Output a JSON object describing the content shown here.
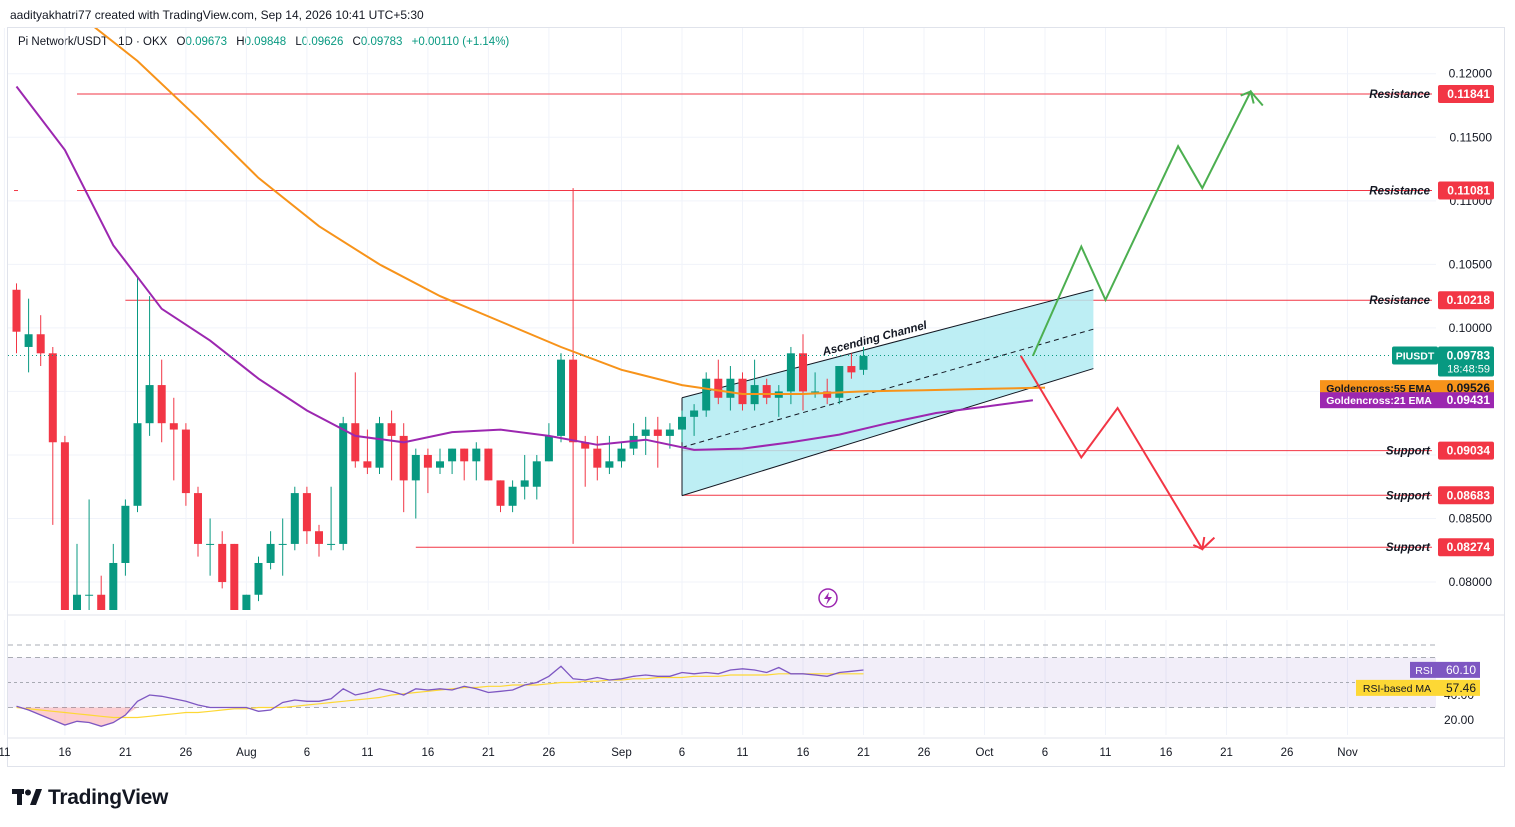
{
  "header": {
    "credit": "aadityakhatri77 created with TradingView.com, Sep 14, 2026 10:41 UTC+5:30",
    "symbol": "Pi Network/USDT · 1D · OKX",
    "o_label": "O",
    "o": "0.09673",
    "h_label": "H",
    "h": "0.09848",
    "l_label": "L",
    "l": "0.09626",
    "c_label": "C",
    "c": "0.09783",
    "change": "+0.00110 (+1.14%)"
  },
  "brand": "TradingView",
  "colors": {
    "up": "#089981",
    "down": "#f23645",
    "ema55": "#f7931a",
    "ema21": "#9c27b0",
    "channel_fill": "#b2ebf2",
    "projection_up": "#4caf50",
    "projection_down": "#f23645",
    "rsi": "#7e57c2",
    "rsi_ma": "#fdd835"
  },
  "chart_data": {
    "type": "candlestick",
    "x_ticks": [
      "11",
      "16",
      "21",
      "26",
      "Aug",
      "6",
      "11",
      "16",
      "21",
      "26",
      "Sep",
      "6",
      "11",
      "16",
      "21",
      "26",
      "Oct",
      "6",
      "11",
      "16",
      "21",
      "26",
      "Nov"
    ],
    "x_tick_days": [
      -1,
      4,
      9,
      14,
      19,
      24,
      29,
      34,
      39,
      44,
      50,
      55,
      60,
      65,
      70,
      75,
      80,
      85,
      90,
      95,
      100,
      105,
      110
    ],
    "y_ticks": [
      "0.12000",
      "0.11500",
      "0.11000",
      "0.10500",
      "0.10000",
      "0.08500",
      "0.08000"
    ],
    "y_tick_values": [
      0.12,
      0.115,
      0.11,
      0.105,
      0.1,
      0.085,
      0.08
    ],
    "ylim": [
      0.0778,
      0.1236
    ],
    "candles": [
      {
        "o": 0.103,
        "h": 0.1035,
        "c": 0.0997,
        "l": 0.098
      },
      {
        "o": 0.0985,
        "h": 0.1023,
        "c": 0.0995,
        "l": 0.0965
      },
      {
        "o": 0.0995,
        "h": 0.101,
        "c": 0.098,
        "l": 0.097
      },
      {
        "o": 0.098,
        "h": 0.0985,
        "c": 0.091,
        "l": 0.0845
      },
      {
        "o": 0.091,
        "h": 0.0915,
        "c": 0.0775,
        "l": 0.077
      },
      {
        "o": 0.0775,
        "h": 0.083,
        "c": 0.079,
        "l": 0.077
      },
      {
        "o": 0.079,
        "h": 0.0865,
        "c": 0.079,
        "l": 0.0775
      },
      {
        "o": 0.079,
        "h": 0.0805,
        "c": 0.0775,
        "l": 0.077
      },
      {
        "o": 0.0775,
        "h": 0.083,
        "c": 0.0815,
        "l": 0.077
      },
      {
        "o": 0.0815,
        "h": 0.0865,
        "c": 0.086,
        "l": 0.0805
      },
      {
        "o": 0.086,
        "h": 0.104,
        "c": 0.0925,
        "l": 0.0855
      },
      {
        "o": 0.0925,
        "h": 0.1025,
        "c": 0.0955,
        "l": 0.0915
      },
      {
        "o": 0.0955,
        "h": 0.0975,
        "c": 0.0925,
        "l": 0.091
      },
      {
        "o": 0.0925,
        "h": 0.0945,
        "c": 0.092,
        "l": 0.088
      },
      {
        "o": 0.092,
        "h": 0.0925,
        "c": 0.087,
        "l": 0.086
      },
      {
        "o": 0.087,
        "h": 0.0875,
        "c": 0.083,
        "l": 0.082
      },
      {
        "o": 0.083,
        "h": 0.085,
        "c": 0.083,
        "l": 0.0805
      },
      {
        "o": 0.083,
        "h": 0.084,
        "c": 0.08,
        "l": 0.0795
      },
      {
        "o": 0.083,
        "h": 0.083,
        "c": 0.0775,
        "l": 0.077
      },
      {
        "o": 0.0775,
        "h": 0.079,
        "c": 0.079,
        "l": 0.077
      },
      {
        "o": 0.079,
        "h": 0.082,
        "c": 0.0815,
        "l": 0.0785
      },
      {
        "o": 0.0815,
        "h": 0.084,
        "c": 0.083,
        "l": 0.081
      },
      {
        "o": 0.083,
        "h": 0.085,
        "c": 0.083,
        "l": 0.0805
      },
      {
        "o": 0.083,
        "h": 0.0875,
        "c": 0.087,
        "l": 0.0825
      },
      {
        "o": 0.087,
        "h": 0.0875,
        "c": 0.084,
        "l": 0.083
      },
      {
        "o": 0.084,
        "h": 0.0845,
        "c": 0.083,
        "l": 0.082
      },
      {
        "o": 0.083,
        "h": 0.0875,
        "c": 0.083,
        "l": 0.0825
      },
      {
        "o": 0.083,
        "h": 0.093,
        "c": 0.0925,
        "l": 0.0825
      },
      {
        "o": 0.0925,
        "h": 0.0965,
        "c": 0.0895,
        "l": 0.089
      },
      {
        "o": 0.0895,
        "h": 0.092,
        "c": 0.089,
        "l": 0.0885
      },
      {
        "o": 0.089,
        "h": 0.093,
        "c": 0.0925,
        "l": 0.0885
      },
      {
        "o": 0.0925,
        "h": 0.0935,
        "c": 0.0915,
        "l": 0.088
      },
      {
        "o": 0.0915,
        "h": 0.0925,
        "c": 0.088,
        "l": 0.0855
      },
      {
        "o": 0.088,
        "h": 0.0905,
        "c": 0.09,
        "l": 0.085
      },
      {
        "o": 0.09,
        "h": 0.0905,
        "c": 0.089,
        "l": 0.087
      },
      {
        "o": 0.089,
        "h": 0.0905,
        "c": 0.0895,
        "l": 0.0885
      },
      {
        "o": 0.0895,
        "h": 0.0905,
        "c": 0.0905,
        "l": 0.0885
      },
      {
        "o": 0.0905,
        "h": 0.0905,
        "c": 0.0895,
        "l": 0.088
      },
      {
        "o": 0.0895,
        "h": 0.091,
        "c": 0.0905,
        "l": 0.088
      },
      {
        "o": 0.0905,
        "h": 0.0905,
        "c": 0.088,
        "l": 0.088
      },
      {
        "o": 0.088,
        "h": 0.088,
        "c": 0.086,
        "l": 0.0855
      },
      {
        "o": 0.086,
        "h": 0.088,
        "c": 0.0875,
        "l": 0.0855
      },
      {
        "o": 0.0875,
        "h": 0.09,
        "c": 0.088,
        "l": 0.0865
      },
      {
        "o": 0.0875,
        "h": 0.09,
        "c": 0.0895,
        "l": 0.0865
      },
      {
        "o": 0.0895,
        "h": 0.0925,
        "c": 0.0915,
        "l": 0.0895
      },
      {
        "o": 0.0915,
        "h": 0.098,
        "c": 0.0975,
        "l": 0.091
      },
      {
        "o": 0.0975,
        "h": 0.111,
        "c": 0.091,
        "l": 0.083
      },
      {
        "o": 0.091,
        "h": 0.0915,
        "c": 0.0905,
        "l": 0.0875
      },
      {
        "o": 0.0905,
        "h": 0.0915,
        "c": 0.089,
        "l": 0.088
      },
      {
        "o": 0.089,
        "h": 0.0915,
        "c": 0.0895,
        "l": 0.0885
      },
      {
        "o": 0.0895,
        "h": 0.091,
        "c": 0.0905,
        "l": 0.089
      },
      {
        "o": 0.0905,
        "h": 0.0925,
        "c": 0.0915,
        "l": 0.09
      },
      {
        "o": 0.0915,
        "h": 0.093,
        "c": 0.092,
        "l": 0.09
      },
      {
        "o": 0.092,
        "h": 0.093,
        "c": 0.0915,
        "l": 0.089
      },
      {
        "o": 0.0915,
        "h": 0.0925,
        "c": 0.092,
        "l": 0.0905
      },
      {
        "o": 0.092,
        "h": 0.0935,
        "c": 0.093,
        "l": 0.091
      },
      {
        "o": 0.093,
        "h": 0.094,
        "c": 0.0935,
        "l": 0.0915
      },
      {
        "o": 0.0935,
        "h": 0.0965,
        "c": 0.096,
        "l": 0.093
      },
      {
        "o": 0.096,
        "h": 0.0975,
        "c": 0.0945,
        "l": 0.094
      },
      {
        "o": 0.0945,
        "h": 0.097,
        "c": 0.096,
        "l": 0.0935
      },
      {
        "o": 0.096,
        "h": 0.0965,
        "c": 0.094,
        "l": 0.0935
      },
      {
        "o": 0.094,
        "h": 0.0975,
        "c": 0.0955,
        "l": 0.0935
      },
      {
        "o": 0.0955,
        "h": 0.096,
        "c": 0.0945,
        "l": 0.094
      },
      {
        "o": 0.0945,
        "h": 0.0955,
        "c": 0.095,
        "l": 0.093
      },
      {
        "o": 0.095,
        "h": 0.0985,
        "c": 0.098,
        "l": 0.094
      },
      {
        "o": 0.098,
        "h": 0.0995,
        "c": 0.095,
        "l": 0.0935
      },
      {
        "o": 0.095,
        "h": 0.0965,
        "c": 0.095,
        "l": 0.0945
      },
      {
        "o": 0.095,
        "h": 0.096,
        "c": 0.0945,
        "l": 0.094
      },
      {
        "o": 0.0945,
        "h": 0.097,
        "c": 0.097,
        "l": 0.094
      },
      {
        "o": 0.097,
        "h": 0.098,
        "c": 0.0965,
        "l": 0.096
      },
      {
        "o": 0.0967,
        "h": 0.0985,
        "c": 0.0978,
        "l": 0.0963
      }
    ],
    "ema55": [
      [
        6,
        0.124
      ],
      [
        10,
        0.121
      ],
      [
        15,
        0.1165
      ],
      [
        20,
        0.1118
      ],
      [
        25,
        0.108
      ],
      [
        30,
        0.105
      ],
      [
        35,
        0.1025
      ],
      [
        40,
        0.1005
      ],
      [
        45,
        0.0985
      ],
      [
        50,
        0.0967
      ],
      [
        55,
        0.0955
      ],
      [
        60,
        0.0948
      ],
      [
        65,
        0.0948
      ],
      [
        70,
        0.095
      ],
      [
        75,
        0.0951
      ],
      [
        80,
        0.0952
      ],
      [
        85,
        0.0953
      ]
    ],
    "ema21": [
      [
        0,
        0.119
      ],
      [
        4,
        0.114
      ],
      [
        8,
        0.1065
      ],
      [
        12,
        0.1015
      ],
      [
        16,
        0.099
      ],
      [
        20,
        0.096
      ],
      [
        24,
        0.0935
      ],
      [
        28,
        0.0915
      ],
      [
        32,
        0.091
      ],
      [
        36,
        0.0918
      ],
      [
        40,
        0.092
      ],
      [
        44,
        0.0915
      ],
      [
        48,
        0.0908
      ],
      [
        52,
        0.0912
      ],
      [
        56,
        0.0904
      ],
      [
        60,
        0.0905
      ],
      [
        64,
        0.091
      ],
      [
        68,
        0.0916
      ],
      [
        72,
        0.0925
      ],
      [
        76,
        0.0933
      ],
      [
        80,
        0.0938
      ],
      [
        84,
        0.0943
      ]
    ],
    "channel": {
      "label": "Ascending Channel",
      "upper": [
        [
          55,
          0.0945
        ],
        [
          89,
          0.103
        ]
      ],
      "lower": [
        [
          55,
          0.0868
        ],
        [
          89,
          0.0968
        ]
      ],
      "mid": [
        [
          55,
          0.0906
        ],
        [
          89,
          0.0999
        ]
      ]
    },
    "projection_up": [
      [
        84,
        0.0978
      ],
      [
        88,
        0.1064
      ],
      [
        90,
        0.1022
      ],
      [
        96,
        0.1143
      ],
      [
        98,
        0.111
      ],
      [
        102,
        0.1186
      ],
      [
        103,
        0.1175
      ]
    ],
    "projection_down": [
      [
        83,
        0.0978
      ],
      [
        88,
        0.0898
      ],
      [
        91,
        0.0937
      ],
      [
        98,
        0.0826
      ],
      [
        99,
        0.0835
      ]
    ],
    "levels": [
      {
        "label": "Resistance",
        "value": "0.11841",
        "y": 0.11841,
        "x0": 5
      },
      {
        "label": "Resistance",
        "value": "0.11081",
        "y": 0.11081,
        "x0": 5
      },
      {
        "label": "Resistance",
        "value": "0.10218",
        "y": 0.10218,
        "x0": 9
      },
      {
        "label": "Support",
        "value": "0.09034",
        "y": 0.09034,
        "x0": 55
      },
      {
        "label": "Support",
        "value": "0.08683",
        "y": 0.08683,
        "x0": 55
      },
      {
        "label": "Support",
        "value": "0.08274",
        "y": 0.08274,
        "x0": 33
      }
    ],
    "price_tag": {
      "symbol": "PIUSDT",
      "value": "0.09783",
      "countdown": "18:48:59",
      "y": 0.09783
    },
    "ema_tags": [
      {
        "label": "Goldencross:55 EMA",
        "value": "0.09526",
        "y": 0.09526,
        "color": "#f7931a"
      },
      {
        "label": "Goldencross:21 EMA",
        "value": "0.09431",
        "y": 0.09431,
        "color": "#9c27b0"
      }
    ],
    "rsi": {
      "ylim": [
        8,
        100
      ],
      "y_ticks": [
        "40.00",
        "20.00"
      ],
      "y_tick_values": [
        40,
        20
      ],
      "bands": [
        80,
        70,
        50,
        30
      ],
      "label": "RSI",
      "value": "60.10",
      "value_num": 60.1,
      "ma_label": "RSI-based MA",
      "ma_value": "57.46",
      "ma_value_num": 57.46,
      "series": [
        31,
        28,
        24,
        20,
        16,
        19,
        18,
        15,
        18,
        24,
        35,
        40,
        39,
        37,
        35,
        32,
        30,
        30,
        30,
        30,
        27,
        28,
        34,
        36,
        35,
        35,
        37,
        45,
        40,
        42,
        45,
        43,
        40,
        45,
        44,
        45,
        44,
        47,
        45,
        42,
        43,
        44,
        48,
        50,
        55,
        63,
        53,
        52,
        54,
        52,
        53,
        55,
        56,
        55,
        55,
        58,
        57,
        58,
        57,
        60,
        61,
        60,
        58,
        62,
        57,
        57,
        56,
        55,
        58,
        59,
        60
      ],
      "ma_series": [
        30,
        29,
        28,
        27,
        26,
        25,
        24,
        23,
        22,
        22,
        22,
        23,
        24,
        25,
        26,
        26,
        27,
        28,
        29,
        29,
        30,
        30,
        30,
        31,
        32,
        33,
        34,
        35,
        36,
        37,
        38,
        40,
        41,
        42,
        43,
        44,
        45,
        46,
        46,
        47,
        47,
        48,
        48,
        48,
        49,
        50,
        50,
        51,
        51,
        52,
        52,
        53,
        53,
        54,
        54,
        54,
        55,
        55,
        55,
        56,
        56,
        56,
        56,
        57,
        57,
        57,
        57,
        57,
        57,
        57,
        57
      ]
    }
  }
}
